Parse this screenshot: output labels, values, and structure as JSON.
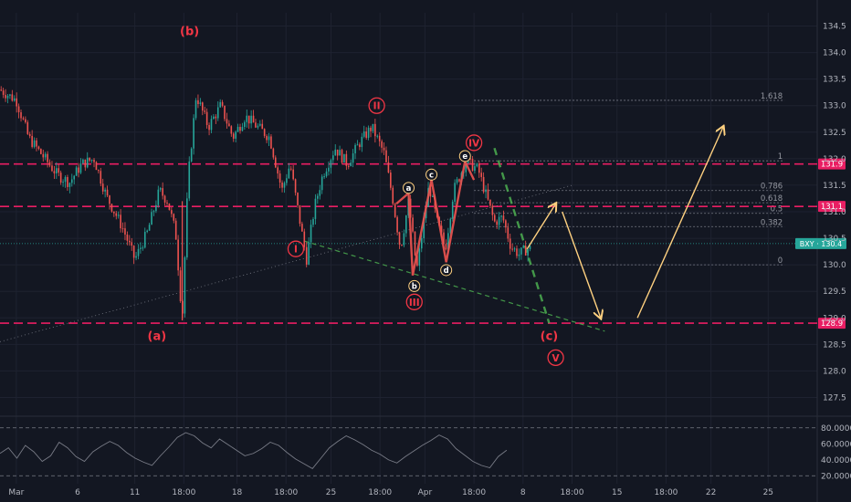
{
  "chart_data": {
    "type": "candlestick",
    "symbol_badge": "BXY · 130.4",
    "colors": {
      "background": "#131722",
      "up": "#26a69a",
      "down": "#ef5350",
      "level_line": "#e91e63",
      "wave_label": "#f23645",
      "projection": "#ffd180",
      "fib": "#787b86",
      "channel": "#4caf50",
      "oscillator": "#787b86",
      "axis_text": "#b2b5be"
    },
    "y_axis": {
      "range": [
        127.25,
        134.75
      ],
      "ticks": [
        "127.5",
        "128.0",
        "128.5",
        "129.0",
        "129.5",
        "130.0",
        "130.5",
        "131.0",
        "131.5",
        "132.0",
        "132.5",
        "133.0",
        "133.5",
        "134.0",
        "134.5"
      ]
    },
    "x_axis": {
      "range": [
        0,
        100
      ],
      "ticks": [
        {
          "label": "Mar",
          "x": 2
        },
        {
          "label": "6",
          "x": 9.5
        },
        {
          "label": "11",
          "x": 16.5
        },
        {
          "label": "18:00",
          "x": 22.5
        },
        {
          "label": "18",
          "x": 29
        },
        {
          "label": "18:00",
          "x": 35
        },
        {
          "label": "25",
          "x": 40.5
        },
        {
          "label": "18:00",
          "x": 46.5
        },
        {
          "label": "Apr",
          "x": 52
        },
        {
          "label": "18:00",
          "x": 58
        },
        {
          "label": "8",
          "x": 64
        },
        {
          "label": "18:00",
          "x": 70
        },
        {
          "label": "15",
          "x": 75.5
        },
        {
          "label": "18:00",
          "x": 81.5
        },
        {
          "label": "22",
          "x": 87
        },
        {
          "label": "25",
          "x": 94
        }
      ]
    },
    "price_levels": [
      {
        "value": 131.9,
        "label": "131.9"
      },
      {
        "value": 131.1,
        "label": "131.1"
      },
      {
        "value": 128.9,
        "label": "128.9"
      }
    ],
    "current_price": 130.4,
    "fib_levels": [
      {
        "label": "1.618",
        "value": 133.1
      },
      {
        "label": "1",
        "value": 131.96
      },
      {
        "label": "0.786",
        "value": 131.4
      },
      {
        "label": "0.618",
        "value": 131.17
      },
      {
        "label": "0.5",
        "value": 130.97
      },
      {
        "label": "0.382",
        "value": 130.72
      },
      {
        "label": "0",
        "value": 130.0
      }
    ],
    "fib_x_range": [
      58,
      96
    ],
    "candles_x_range": [
      0,
      65
    ],
    "price_path": [
      [
        0,
        133.3
      ],
      [
        2,
        133.1
      ],
      [
        3.5,
        132.4
      ],
      [
        5,
        132.1
      ],
      [
        7,
        131.7
      ],
      [
        8.5,
        131.55
      ],
      [
        10,
        131.9
      ],
      [
        11.5,
        132.0
      ],
      [
        13,
        131.3
      ],
      [
        15,
        130.7
      ],
      [
        16.5,
        130.1
      ],
      [
        18,
        130.6
      ],
      [
        19.5,
        131.4
      ],
      [
        20.5,
        131.2
      ],
      [
        21.5,
        130.6
      ],
      [
        22.3,
        128.95
      ],
      [
        23,
        131.6
      ],
      [
        24,
        133.2
      ],
      [
        25.5,
        132.6
      ],
      [
        27,
        133.0
      ],
      [
        28.5,
        132.4
      ],
      [
        30,
        132.8
      ],
      [
        31.5,
        132.6
      ],
      [
        33,
        132.4
      ],
      [
        34.5,
        131.4
      ],
      [
        35.5,
        131.9
      ],
      [
        36.5,
        131.0
      ],
      [
        37.5,
        130.1
      ],
      [
        38.5,
        131.1
      ],
      [
        39.5,
        131.7
      ],
      [
        41,
        132.2
      ],
      [
        42.5,
        131.9
      ],
      [
        44,
        132.3
      ],
      [
        45.5,
        132.6
      ],
      [
        47,
        132.1
      ],
      [
        48,
        131.3
      ],
      [
        49,
        130.3
      ],
      [
        50,
        131.2
      ],
      [
        51,
        129.9
      ],
      [
        52.5,
        131.5
      ],
      [
        53.5,
        130.8
      ],
      [
        54.5,
        130.3
      ],
      [
        55.5,
        131.4
      ],
      [
        57,
        131.95
      ],
      [
        58.5,
        131.8
      ],
      [
        59.5,
        131.3
      ],
      [
        60.5,
        130.8
      ],
      [
        61.5,
        130.9
      ],
      [
        62.5,
        130.35
      ],
      [
        63.5,
        130.2
      ],
      [
        64.5,
        130.3
      ]
    ],
    "wave_labels": [
      {
        "text": "(b)",
        "x": 23.2,
        "y": 134.4,
        "style": "plain",
        "color": "#f23645"
      },
      {
        "text": "(a)",
        "x": 19.2,
        "y": 128.65,
        "style": "plain",
        "color": "#f23645"
      },
      {
        "text": "(c)",
        "x": 67.2,
        "y": 128.65,
        "style": "plain",
        "color": "#f23645"
      },
      {
        "text": "I",
        "x": 36.2,
        "y": 130.3,
        "style": "circle",
        "color": "#f23645"
      },
      {
        "text": "II",
        "x": 46.1,
        "y": 133.0,
        "style": "circle",
        "color": "#f23645"
      },
      {
        "text": "III",
        "x": 50.7,
        "y": 129.3,
        "style": "circle",
        "color": "#f23645"
      },
      {
        "text": "IV",
        "x": 58.0,
        "y": 132.3,
        "style": "circle",
        "color": "#f23645"
      },
      {
        "text": "V",
        "x": 68.0,
        "y": 128.25,
        "style": "circle",
        "color": "#f23645"
      },
      {
        "text": "a",
        "x": 50.0,
        "y": 131.45,
        "style": "small",
        "color": "#ffd180"
      },
      {
        "text": "b",
        "x": 50.7,
        "y": 129.6,
        "style": "small",
        "color": "#ffd180"
      },
      {
        "text": "c",
        "x": 52.8,
        "y": 131.7,
        "style": "small",
        "color": "#ffd180"
      },
      {
        "text": "d",
        "x": 54.6,
        "y": 129.9,
        "style": "small",
        "color": "#ffd180"
      },
      {
        "text": "e",
        "x": 56.9,
        "y": 132.05,
        "style": "small",
        "color": "#ffd180"
      }
    ],
    "abcde_path": [
      [
        48.5,
        131.15
      ],
      [
        50.0,
        131.35
      ],
      [
        50.5,
        129.8
      ],
      [
        52.8,
        131.6
      ],
      [
        54.6,
        130.05
      ],
      [
        56.9,
        131.95
      ],
      [
        58.0,
        131.6
      ]
    ],
    "projection_path": [
      [
        64.5,
        130.3
      ],
      [
        68,
        131.15
      ],
      [
        73.5,
        129.0
      ],
      [
        78,
        129.0
      ],
      [
        88.5,
        132.6
      ]
    ],
    "projection_arrows": [
      [
        [
          64.5,
          130.3
        ],
        [
          68,
          131.15
        ]
      ],
      [
        [
          68.8,
          131.0
        ],
        [
          73.5,
          129.0
        ]
      ],
      [
        [
          78,
          129.0
        ],
        [
          88.5,
          132.6
        ]
      ]
    ],
    "channel_lines": [
      [
        [
          37.2,
          130.45
        ],
        [
          74,
          128.75
        ]
      ],
      [
        [
          60.5,
          132.2
        ],
        [
          67.2,
          128.9
        ]
      ]
    ],
    "trendline_dotted": [
      [
        0,
        128.55
      ],
      [
        70,
        131.5
      ]
    ],
    "oscillator": {
      "ticks": [
        "80.0000",
        "60.0000",
        "40.0000",
        "20.0000"
      ],
      "range": [
        10,
        90
      ],
      "dashed_levels": [
        80,
        20
      ],
      "values": [
        48,
        55,
        42,
        58,
        50,
        38,
        45,
        62,
        55,
        44,
        38,
        50,
        57,
        63,
        58,
        49,
        42,
        37,
        33,
        45,
        56,
        68,
        74,
        70,
        61,
        55,
        66,
        59,
        52,
        45,
        48,
        54,
        62,
        58,
        49,
        41,
        35,
        29,
        42,
        55,
        63,
        70,
        65,
        59,
        52,
        47,
        40,
        36,
        44,
        51,
        58,
        64,
        71,
        66,
        54,
        46,
        38,
        33,
        30,
        44,
        52
      ]
    }
  }
}
